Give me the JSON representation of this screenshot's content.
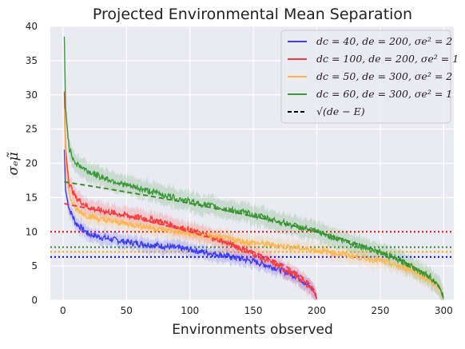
{
  "chart_data": {
    "type": "line",
    "title": "Projected Environmental Mean Separation",
    "xlabel": "Environments observed",
    "ylabel": "σₑμ̃",
    "xlim": [
      -10,
      308
    ],
    "ylim": [
      0,
      40
    ],
    "xticks": [
      0,
      50,
      100,
      150,
      200,
      250,
      300
    ],
    "yticks": [
      0,
      5,
      10,
      15,
      20,
      25,
      30,
      35,
      40
    ],
    "grid": true,
    "background": "#eaeaf2",
    "legend_position": "top-right",
    "series": [
      {
        "name": "dc = 40, de = 200, σe² = 2",
        "legend_label": "d_c = 40, d_e = 200, σ_e² = 2",
        "color": "#3b3bff",
        "style": "solid",
        "x": [
          1,
          2,
          5,
          10,
          20,
          30,
          50,
          75,
          100,
          125,
          150,
          170,
          185,
          195,
          198,
          200
        ],
        "y": [
          22,
          16,
          13.3,
          11.3,
          9.7,
          9.2,
          8.5,
          8.0,
          7.4,
          6.6,
          5.7,
          4.6,
          3.4,
          1.9,
          1.2,
          0.2
        ],
        "band": 1.0
      },
      {
        "name": "dc = 100, de = 200, σe² = 1",
        "legend_label": "d_c = 100, d_e = 200, σ_e² = 1",
        "color": "#ff3b3b",
        "style": "solid",
        "x": [
          1,
          2,
          5,
          10,
          20,
          30,
          50,
          75,
          100,
          125,
          150,
          170,
          185,
          195,
          198,
          200
        ],
        "y": [
          30.5,
          22,
          17,
          15,
          13.6,
          13.1,
          12.4,
          11.6,
          10.2,
          8.7,
          6.8,
          5.0,
          3.4,
          1.9,
          1.1,
          0.2
        ],
        "band": 1.2
      },
      {
        "name": "dc = 50, de = 300, σe² = 2",
        "legend_label": "d_c = 50, d_e = 300, σ_e² = 2",
        "color": "#ffb74d",
        "style": "solid",
        "x": [
          1,
          2,
          5,
          10,
          20,
          30,
          50,
          100,
          150,
          200,
          250,
          275,
          290,
          297,
          300
        ],
        "y": [
          28,
          20,
          15.2,
          13.3,
          12.3,
          11.8,
          11.2,
          9.7,
          8.4,
          7.3,
          5.8,
          4.4,
          2.8,
          1.5,
          0.3
        ],
        "band": 1.1
      },
      {
        "name": "dc = 60, de = 300, σe² = 1",
        "legend_label": "d_c = 60, d_e = 300, σ_e² = 1",
        "color": "#3a9a3a",
        "style": "solid",
        "x": [
          1,
          2,
          5,
          10,
          20,
          30,
          50,
          100,
          150,
          200,
          250,
          275,
          290,
          297,
          300
        ],
        "y": [
          38.5,
          28,
          22,
          20,
          18.8,
          18,
          16.8,
          14.4,
          12.5,
          10,
          7.0,
          5.0,
          3.3,
          1.8,
          0.2
        ],
        "band": 1.4
      },
      {
        "name": "√(de − E)",
        "legend_label": "√(d_e − E)",
        "color": "#000000",
        "style": "dashed",
        "x": [
          1,
          200,
          1,
          200,
          1,
          300,
          1,
          300
        ],
        "y": [
          14.1,
          0,
          14.1,
          0,
          17.3,
          0,
          17.3,
          0
        ]
      }
    ],
    "dashed_fits": [
      {
        "color": "#3b3bff",
        "de": 200
      },
      {
        "color": "#ff3b3b",
        "de": 200
      },
      {
        "color": "#ff9f1c",
        "de": 300
      },
      {
        "color": "#2e8b2e",
        "de": 300
      }
    ],
    "horizontal_lines": [
      {
        "y": 10.0,
        "color": "#ff0000"
      },
      {
        "y": 7.75,
        "color": "#2e8b2e"
      },
      {
        "y": 7.07,
        "color": "#ffa500"
      },
      {
        "y": 6.32,
        "color": "#0000ff"
      }
    ]
  }
}
